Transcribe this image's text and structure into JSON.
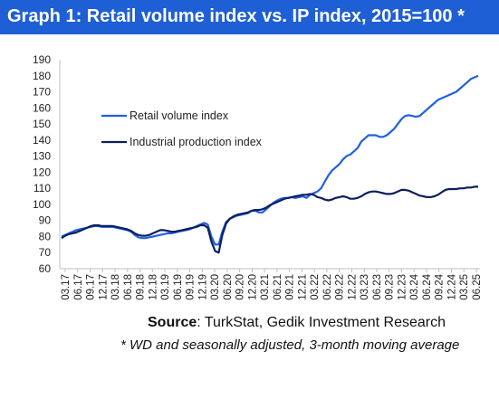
{
  "header": {
    "title": "Graph 1: Retail volume index vs. IP index, 2015=100 *"
  },
  "footer": {
    "source_label": "Source",
    "source_text": ": TurkStat, Gedik Investment Research",
    "note": "* WD and seasonally adjusted, 3-month moving average"
  },
  "chart_data": {
    "type": "line",
    "title": "Graph 1: Retail volume index vs. IP index, 2015=100 *",
    "xlabel": "",
    "ylabel": "",
    "ylim": [
      60,
      190
    ],
    "yticks": [
      60,
      70,
      80,
      90,
      100,
      110,
      120,
      130,
      140,
      150,
      160,
      170,
      180,
      190
    ],
    "grid": false,
    "legend_position": "upper-left",
    "x_tick_labels": [
      "03.17",
      "06.17",
      "09.17",
      "12.17",
      "03.18",
      "06.18",
      "09.18",
      "12.18",
      "03.19",
      "06.19",
      "09.19",
      "12.19",
      "03.20",
      "06.20",
      "09.20",
      "12.20",
      "03.21",
      "06.21",
      "09.21",
      "12.21",
      "03.22",
      "06.22",
      "09.22",
      "12.22",
      "03.23",
      "06.23",
      "09.23",
      "12.23",
      "03.24",
      "06.24",
      "09.24",
      "12.24",
      "03.25",
      "06.25"
    ],
    "series": [
      {
        "name": "Retail volume index",
        "color": "#1f5fe8",
        "values": [
          80,
          81,
          82,
          83,
          84,
          84.5,
          85,
          85.5,
          86,
          86.5,
          86.5,
          86,
          86,
          86,
          86,
          85.5,
          85,
          84.5,
          84,
          83,
          81,
          79.5,
          79,
          79,
          79.5,
          80,
          80.5,
          81,
          81.5,
          82,
          82,
          82.5,
          83,
          83.5,
          84,
          84.5,
          85.5,
          86.5,
          87.5,
          88.5,
          87.5,
          80,
          75,
          75,
          83,
          89,
          91,
          92,
          93,
          93.5,
          94,
          94.5,
          96,
          96,
          95,
          95,
          97,
          99,
          101,
          102.5,
          103.5,
          104,
          104,
          104.5,
          104,
          104.5,
          105,
          104,
          106,
          107,
          108,
          110,
          114,
          118,
          121,
          123,
          125,
          128,
          130,
          131,
          133,
          135,
          139,
          141,
          143,
          143,
          143,
          142,
          142,
          143,
          145,
          147,
          150,
          153,
          155,
          155.5,
          155,
          154.5,
          155,
          157,
          159,
          161,
          163,
          165,
          166,
          167,
          168,
          169,
          170,
          172,
          174,
          176,
          178,
          179,
          180
        ]
      },
      {
        "name": "Industrial production index",
        "color": "#0b1f5c",
        "values": [
          79,
          80.5,
          81.5,
          82,
          82.5,
          83.5,
          84.5,
          85.5,
          86.5,
          87,
          87,
          86.5,
          86.5,
          86.5,
          86.5,
          86,
          85.5,
          85,
          84.5,
          83.5,
          82,
          81,
          80.5,
          80.5,
          81,
          82,
          83,
          84,
          84,
          83.5,
          83,
          83,
          83.5,
          84,
          84.5,
          85,
          85.5,
          86,
          87,
          87,
          85.5,
          77,
          71,
          70,
          81,
          88,
          91,
          92.5,
          93.5,
          94,
          94.5,
          95,
          96,
          96.5,
          96.5,
          97,
          98,
          99.5,
          100.5,
          101.5,
          102.5,
          103.5,
          104,
          104.5,
          105,
          105.5,
          106,
          106,
          106.5,
          106,
          104.5,
          104,
          103,
          102.5,
          103,
          104,
          104.5,
          105,
          104.5,
          103.5,
          103.5,
          104,
          105,
          106.5,
          107.5,
          108,
          108,
          107.5,
          107,
          106.5,
          106.5,
          107,
          108,
          109,
          109,
          108.5,
          107.5,
          106.5,
          105.5,
          105,
          104.5,
          104.5,
          105,
          106,
          107.5,
          109,
          109.5,
          109.5,
          109.5,
          110,
          110,
          110.5,
          110.5,
          111,
          111
        ]
      }
    ]
  }
}
